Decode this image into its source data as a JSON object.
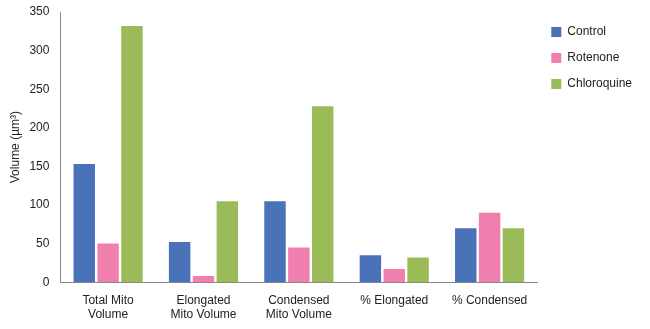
{
  "chart_data": {
    "type": "bar",
    "y_label": "Volume (µm³)",
    "categories": [
      [
        "Total Mito",
        "Volume"
      ],
      [
        "Elongated",
        "Mito Volume"
      ],
      [
        "Condensed",
        "Mito Volume"
      ],
      [
        "% Elongated"
      ],
      [
        "% Condensed"
      ]
    ],
    "series": [
      {
        "name": "Control",
        "color": "#4a72b8",
        "values": [
          153,
          52,
          105,
          35,
          70
        ]
      },
      {
        "name": "Rotenone",
        "color": "#f17fae",
        "values": [
          50,
          8,
          45,
          17,
          90
        ]
      },
      {
        "name": "Chloroquine",
        "color": "#9bbb59",
        "values": [
          332,
          105,
          228,
          32,
          70
        ]
      }
    ],
    "ylim": [
      0,
      350
    ],
    "yticks": [
      0,
      50,
      100,
      150,
      200,
      250,
      300,
      350
    ],
    "grid": false,
    "legend": "top right"
  }
}
